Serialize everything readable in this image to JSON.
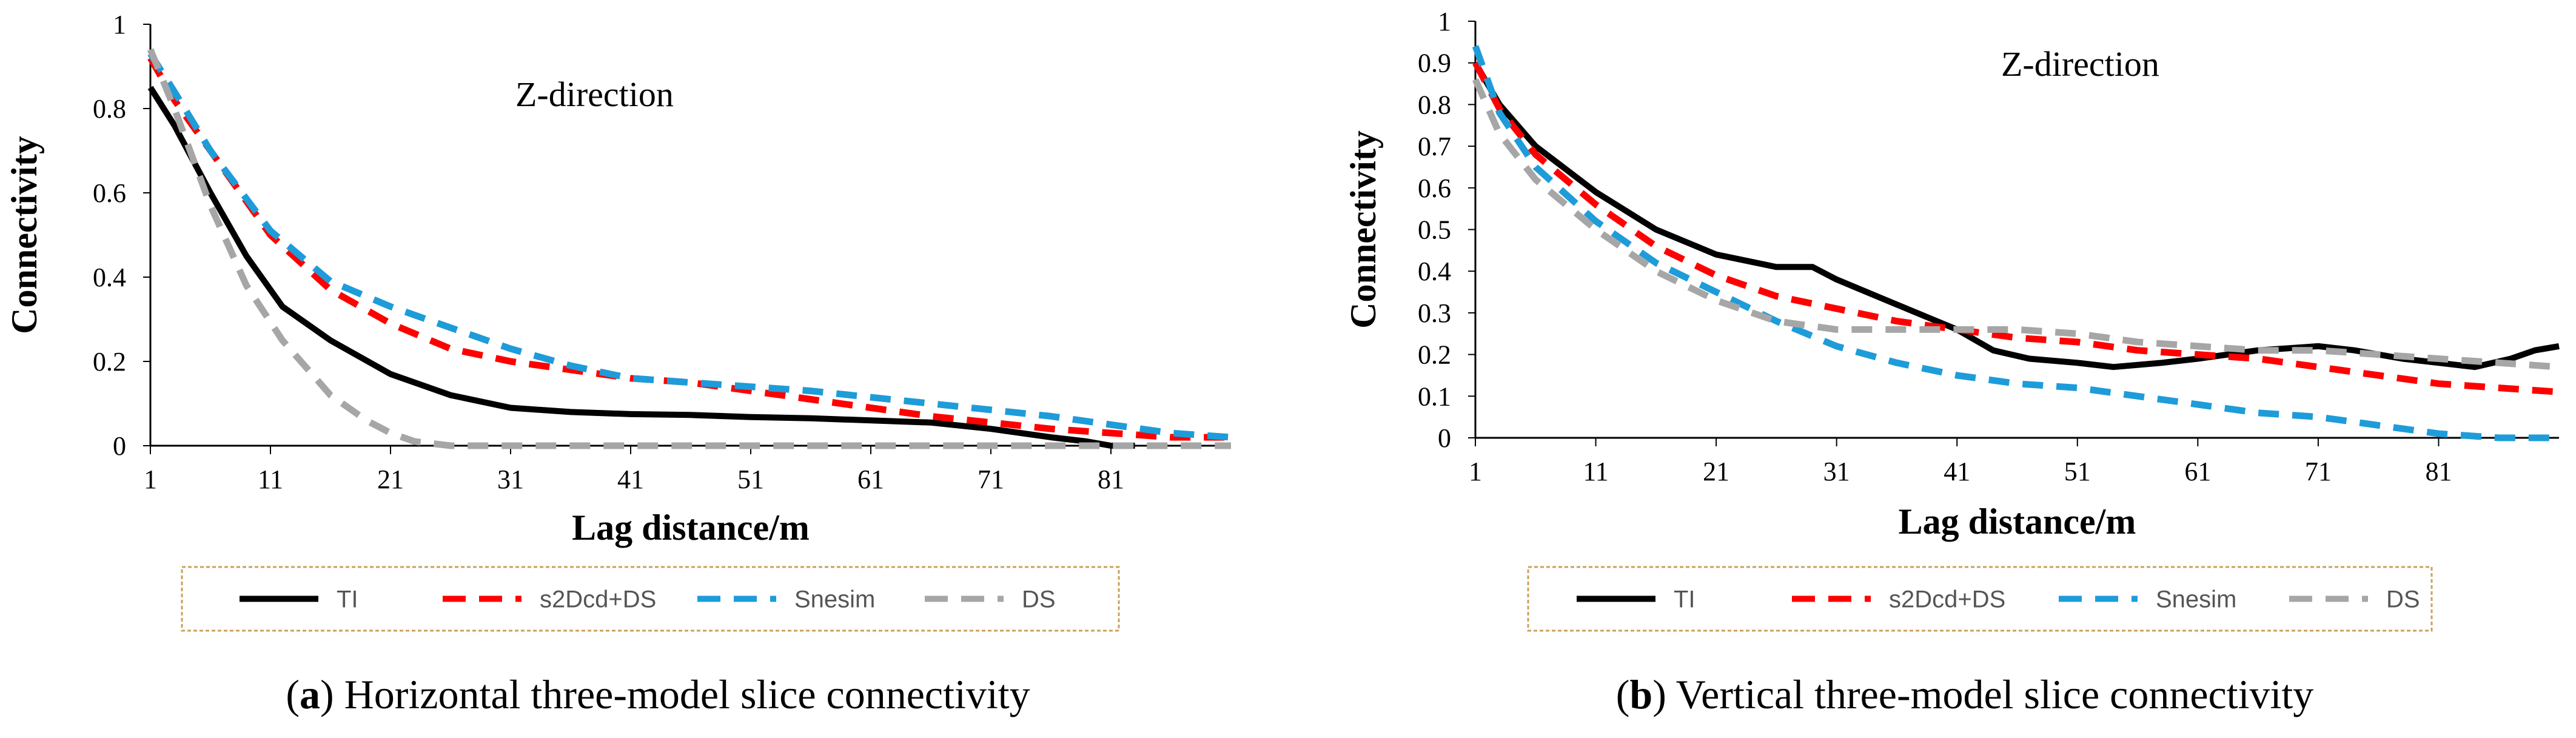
{
  "chart_data": [
    {
      "type": "line",
      "panel_letter": "a",
      "caption": "Horizontal three-model slice connectivity",
      "annotation": "Z-direction",
      "xlabel": "Lag distance/m",
      "ylabel": "Connectivity",
      "xlim": [
        1,
        91
      ],
      "ylim": [
        0,
        1
      ],
      "x_ticks": [
        1,
        11,
        21,
        31,
        41,
        51,
        61,
        71,
        81
      ],
      "y_ticks": [
        0,
        0.2,
        0.4,
        0.6,
        0.8,
        1
      ],
      "y_tick_labels": [
        "0",
        "0.2",
        "0.4",
        "0.6",
        "0.8",
        "1"
      ],
      "legend_position": "below",
      "series": [
        {
          "name": "TI",
          "color": "#000000",
          "dash": "solid",
          "x": [
            1,
            3,
            6,
            9,
            12,
            16,
            21,
            26,
            31,
            36,
            41,
            46,
            51,
            56,
            61,
            66,
            71,
            76,
            79,
            81,
            83
          ],
          "y": [
            0.85,
            0.76,
            0.6,
            0.45,
            0.33,
            0.25,
            0.17,
            0.12,
            0.09,
            0.08,
            0.075,
            0.073,
            0.068,
            0.065,
            0.06,
            0.055,
            0.04,
            0.02,
            0.01,
            0.0,
            0.0
          ]
        },
        {
          "name": "s2Dcd+DS",
          "color": "#ff0000",
          "dash": "long",
          "x": [
            1,
            3,
            6,
            11,
            16,
            21,
            26,
            31,
            36,
            41,
            46,
            51,
            56,
            61,
            66,
            71,
            76,
            81,
            86,
            91
          ],
          "y": [
            0.92,
            0.82,
            0.7,
            0.5,
            0.37,
            0.29,
            0.23,
            0.2,
            0.18,
            0.16,
            0.15,
            0.13,
            0.11,
            0.09,
            0.07,
            0.055,
            0.04,
            0.03,
            0.02,
            0.02
          ]
        },
        {
          "name": "Snesim",
          "color": "#1e9cd9",
          "dash": "long",
          "x": [
            1,
            3,
            6,
            11,
            16,
            21,
            26,
            31,
            36,
            41,
            46,
            51,
            56,
            61,
            66,
            71,
            76,
            81,
            86,
            91
          ],
          "y": [
            0.93,
            0.84,
            0.7,
            0.51,
            0.39,
            0.33,
            0.28,
            0.23,
            0.19,
            0.16,
            0.15,
            0.14,
            0.13,
            0.115,
            0.1,
            0.085,
            0.07,
            0.05,
            0.03,
            0.02
          ]
        },
        {
          "name": "DS",
          "color": "#a6a6a6",
          "dash": "long",
          "x": [
            1,
            3,
            6,
            9,
            12,
            16,
            19,
            21,
            23,
            26,
            31,
            41,
            51,
            61,
            71,
            81,
            91
          ],
          "y": [
            0.94,
            0.8,
            0.57,
            0.38,
            0.25,
            0.12,
            0.06,
            0.03,
            0.01,
            0.0,
            0.0,
            0.0,
            0.0,
            0.0,
            0.0,
            0.0,
            0.0
          ]
        }
      ]
    },
    {
      "type": "line",
      "panel_letter": "b",
      "caption": "Vertical three-model slice connectivity",
      "annotation": "Z-direction",
      "xlabel": "Lag distance/m",
      "ylabel": "Connectivity",
      "xlim": [
        1,
        91
      ],
      "ylim": [
        0,
        1
      ],
      "x_ticks": [
        1,
        11,
        21,
        31,
        41,
        51,
        61,
        71,
        81
      ],
      "y_ticks": [
        0,
        0.1,
        0.2,
        0.3,
        0.4,
        0.5,
        0.6,
        0.7,
        0.8,
        0.9,
        1
      ],
      "y_tick_labels": [
        "0",
        "0.1",
        "0.2",
        "0.3",
        "0.4",
        "0.5",
        "0.6",
        "0.7",
        "0.8",
        "0.9",
        "1"
      ],
      "legend_position": "below",
      "series": [
        {
          "name": "TI",
          "color": "#000000",
          "dash": "solid",
          "x": [
            1,
            3,
            6,
            11,
            16,
            21,
            26,
            29,
            31,
            36,
            41,
            44,
            47,
            51,
            54,
            58,
            61,
            66,
            71,
            74,
            78,
            81,
            84,
            87,
            89,
            91
          ],
          "y": [
            0.9,
            0.8,
            0.7,
            0.59,
            0.5,
            0.44,
            0.41,
            0.41,
            0.38,
            0.32,
            0.26,
            0.21,
            0.19,
            0.18,
            0.17,
            0.18,
            0.19,
            0.21,
            0.22,
            0.21,
            0.19,
            0.18,
            0.17,
            0.19,
            0.21,
            0.22
          ]
        },
        {
          "name": "s2Dcd+DS",
          "color": "#ff0000",
          "dash": "long",
          "x": [
            1,
            3,
            6,
            11,
            16,
            21,
            26,
            31,
            36,
            41,
            46,
            51,
            56,
            61,
            66,
            71,
            76,
            81,
            86,
            91
          ],
          "y": [
            0.9,
            0.79,
            0.68,
            0.56,
            0.46,
            0.39,
            0.34,
            0.31,
            0.28,
            0.26,
            0.24,
            0.23,
            0.21,
            0.2,
            0.19,
            0.17,
            0.15,
            0.13,
            0.12,
            0.11
          ]
        },
        {
          "name": "Snesim",
          "color": "#1e9cd9",
          "dash": "long",
          "x": [
            1,
            3,
            6,
            11,
            16,
            21,
            26,
            31,
            36,
            41,
            46,
            51,
            56,
            61,
            66,
            71,
            76,
            81,
            86,
            91
          ],
          "y": [
            0.94,
            0.78,
            0.65,
            0.52,
            0.42,
            0.35,
            0.28,
            0.22,
            0.18,
            0.15,
            0.13,
            0.12,
            0.1,
            0.08,
            0.06,
            0.05,
            0.03,
            0.01,
            0.0,
            0.0
          ]
        },
        {
          "name": "DS",
          "color": "#a6a6a6",
          "dash": "long",
          "x": [
            1,
            3,
            6,
            11,
            16,
            21,
            26,
            31,
            36,
            41,
            46,
            51,
            56,
            61,
            66,
            71,
            76,
            81,
            86,
            91
          ],
          "y": [
            0.86,
            0.73,
            0.62,
            0.5,
            0.4,
            0.33,
            0.28,
            0.26,
            0.26,
            0.26,
            0.26,
            0.25,
            0.23,
            0.22,
            0.21,
            0.21,
            0.2,
            0.19,
            0.18,
            0.17
          ]
        }
      ]
    }
  ]
}
